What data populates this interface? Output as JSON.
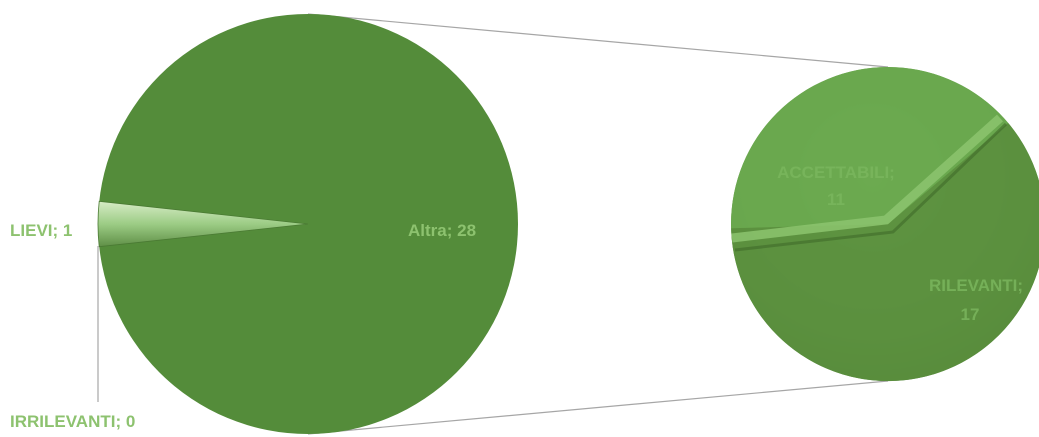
{
  "chart_data": {
    "type": "pie",
    "subtype": "pie-of-pie",
    "main_pie": {
      "slices": [
        {
          "label": "LIEVI",
          "value": 1,
          "text": "LIEVI; 1"
        },
        {
          "label": "IRRILEVANTI",
          "value": 0,
          "text": "IRRILEVANTI; 0"
        },
        {
          "label": "Altra",
          "value": 28,
          "text": "Altra; 28"
        }
      ]
    },
    "secondary_pie": {
      "slices": [
        {
          "label": "ACCETTABILI",
          "value": 11,
          "text_line1": "ACCETTABILI;",
          "text_line2": "11"
        },
        {
          "label": "RILEVANTI",
          "value": 17,
          "text_line1": "RILEVANTI;",
          "text_line2": "17"
        }
      ]
    },
    "legend": "none",
    "colors": {
      "main": "#548c3a",
      "secondary_light": "#6aa84f",
      "secondary_dark": "#5b8f3e",
      "small_slice": "#9ccc85",
      "label_text": "#8dc26f",
      "connector": "#a6a6a6"
    }
  }
}
